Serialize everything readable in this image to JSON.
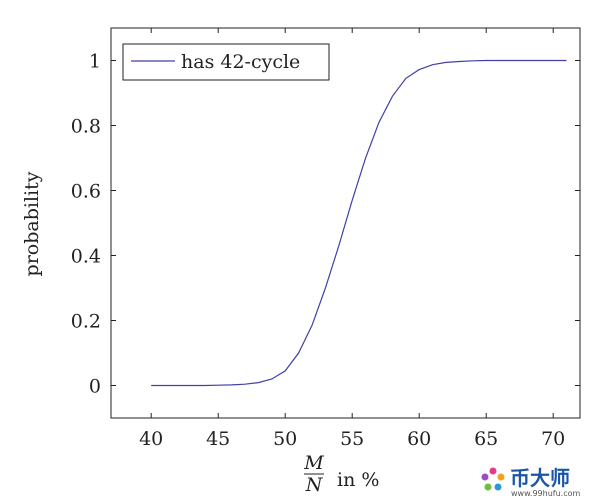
{
  "chart_data": {
    "type": "line",
    "xlabel": {
      "numerator": "M",
      "denominator": "N",
      "suffix": "in %"
    },
    "ylabel": "probability",
    "xlim": [
      37,
      72
    ],
    "ylim": [
      -0.1,
      1.1
    ],
    "x_ticks": [
      "40",
      "45",
      "50",
      "55",
      "60",
      "65",
      "70"
    ],
    "y_ticks": [
      "0",
      "0.2",
      "0.4",
      "0.6",
      "0.8",
      "1"
    ],
    "legend_position": "top-left",
    "grid": false,
    "series": [
      {
        "name": "has 42-cycle",
        "color": "#4040a8",
        "x": [
          40,
          41,
          42,
          43,
          44,
          45,
          46,
          47,
          48,
          49,
          50,
          51,
          52,
          53,
          54,
          55,
          56,
          57,
          58,
          59,
          60,
          61,
          62,
          63,
          64,
          65,
          66,
          67,
          68,
          69,
          70,
          71
        ],
        "y": [
          0,
          0,
          0,
          0,
          0,
          0.001,
          0.002,
          0.004,
          0.009,
          0.02,
          0.045,
          0.1,
          0.185,
          0.3,
          0.43,
          0.57,
          0.7,
          0.81,
          0.89,
          0.945,
          0.972,
          0.987,
          0.994,
          0.997,
          0.999,
          1,
          1,
          1,
          1,
          1,
          1,
          1
        ]
      }
    ]
  },
  "watermark": {
    "brand": "币大师",
    "url": "www.99hufu.com"
  }
}
